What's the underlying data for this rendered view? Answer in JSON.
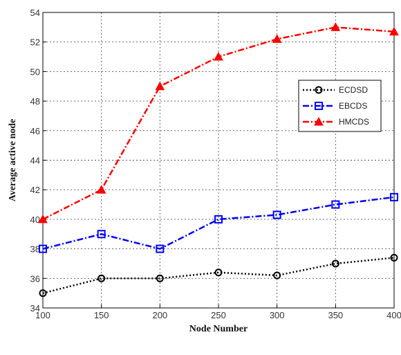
{
  "chart_data": {
    "type": "line",
    "xlabel": "Node Number",
    "ylabel": "Average active node",
    "x": [
      100,
      150,
      200,
      250,
      300,
      350,
      400
    ],
    "xlim": [
      100,
      400
    ],
    "ylim": [
      34,
      54
    ],
    "x_ticks": [
      "100",
      "150",
      "200",
      "250",
      "300",
      "350",
      "400"
    ],
    "y_ticks": [
      "34",
      "36",
      "38",
      "40",
      "42",
      "44",
      "46",
      "48",
      "50",
      "52",
      "54"
    ],
    "grid": true,
    "legend_position": "right",
    "series": [
      {
        "name": "ECDSD",
        "values": [
          35,
          36,
          36,
          36.4,
          36.2,
          37,
          37.4
        ],
        "color": "#000000",
        "marker": "circle",
        "line_style": "dotted"
      },
      {
        "name": "EBCDS",
        "values": [
          38,
          39,
          38,
          40,
          40.3,
          41,
          41.5
        ],
        "color": "#0000ff",
        "marker": "square",
        "line_style": "dash-dot"
      },
      {
        "name": "HMCDS",
        "values": [
          40,
          42,
          49,
          51,
          52.2,
          53,
          52.7
        ],
        "color": "#ff0000",
        "marker": "triangle",
        "line_style": "dash-dot"
      }
    ]
  }
}
